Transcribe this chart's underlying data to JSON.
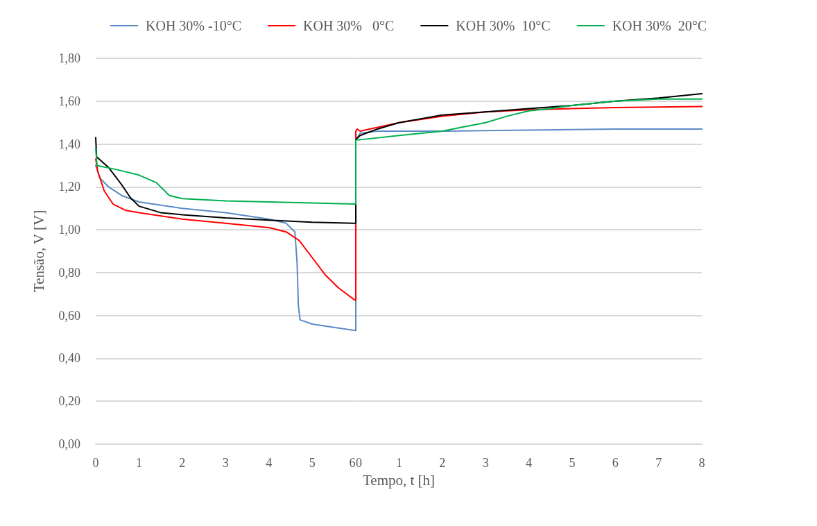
{
  "chart_data": [
    {
      "type": "line",
      "xlabel": "Tempo, t [h]",
      "ylabel": "Tensão, V [V]",
      "xlim": [
        0,
        6
      ],
      "xticks": [
        0,
        1,
        2,
        3,
        4,
        5,
        6
      ],
      "ylim": [
        0,
        1.8
      ],
      "yticks": [
        {
          "value": 0,
          "label": "0,00"
        },
        {
          "value": 0.2,
          "label": "0,20"
        },
        {
          "value": 0.4,
          "label": "0,40"
        },
        {
          "value": 0.6,
          "label": "0,60"
        },
        {
          "value": 0.8,
          "label": "0,80"
        },
        {
          "value": 1,
          "label": "1,00"
        },
        {
          "value": 1.2,
          "label": "1,20"
        },
        {
          "value": 1.4,
          "label": "1,40"
        },
        {
          "value": 1.6,
          "label": "1,60"
        },
        {
          "value": 1.8,
          "label": "1,80"
        }
      ],
      "grid": "y",
      "legend": "top",
      "marker": "none",
      "line_style": "solid",
      "series": [
        {
          "name": "KOH 30% -10°C",
          "color": "#5b8ac6",
          "x": [
            0,
            0.1,
            0.3,
            0.6,
            1,
            2,
            3,
            4,
            4.4,
            4.6,
            4.65,
            4.68,
            4.72,
            5,
            5.5,
            6
          ],
          "values": [
            1.3,
            1.24,
            1.2,
            1.16,
            1.13,
            1.1,
            1.08,
            1.05,
            1.03,
            0.99,
            0.85,
            0.65,
            0.58,
            0.56,
            0.545,
            0.53
          ]
        },
        {
          "name": "KOH 30%   0°C",
          "color": "#ff0000",
          "x": [
            0,
            0.05,
            0.2,
            0.4,
            0.7,
            1,
            2,
            3,
            4,
            4.4,
            4.7,
            5,
            5.3,
            5.6,
            6
          ],
          "values": [
            1.33,
            1.27,
            1.18,
            1.12,
            1.09,
            1.08,
            1.05,
            1.03,
            1.01,
            0.99,
            0.95,
            0.87,
            0.79,
            0.73,
            0.67
          ]
        },
        {
          "name": "KOH 30%  10°C",
          "color": "#000000",
          "x": [
            0,
            0.02,
            0.3,
            0.6,
            0.8,
            1,
            1.5,
            2,
            3,
            4,
            5,
            6
          ],
          "values": [
            1.43,
            1.34,
            1.29,
            1.21,
            1.15,
            1.11,
            1.08,
            1.07,
            1.055,
            1.045,
            1.035,
            1.03
          ]
        },
        {
          "name": "KOH 30%  20°C",
          "color": "#00b050",
          "x": [
            0,
            0.03,
            0.5,
            1,
            1.4,
            1.7,
            2,
            3,
            4,
            5,
            6
          ],
          "values": [
            1.38,
            1.3,
            1.28,
            1.255,
            1.22,
            1.16,
            1.145,
            1.135,
            1.13,
            1.125,
            1.12
          ]
        }
      ]
    },
    {
      "type": "line",
      "xlim": [
        0,
        8
      ],
      "xticks": [
        0,
        1,
        2,
        3,
        4,
        5,
        6,
        7,
        8
      ],
      "ylim": [
        0,
        1.8
      ],
      "yticks": [
        0,
        0.2,
        0.4,
        0.6,
        0.8,
        1,
        1.2,
        1.4,
        1.6,
        1.8
      ],
      "tick_labels": "x",
      "grid": "y",
      "marker": "none",
      "line_style": "solid",
      "series": [
        {
          "color": "#5b8ac6",
          "x": [
            0,
            0,
            0.1,
            0.5,
            2,
            4,
            6,
            8
          ],
          "values": [
            0.53,
            1.42,
            1.45,
            1.46,
            1.46,
            1.465,
            1.47,
            1.47
          ]
        },
        {
          "color": "#ff0000",
          "x": [
            0,
            0,
            0.03,
            0.1,
            1,
            2,
            3,
            4,
            5,
            6,
            8
          ],
          "values": [
            0.67,
            1.46,
            1.47,
            1.46,
            1.5,
            1.53,
            1.55,
            1.56,
            1.565,
            1.57,
            1.575
          ]
        },
        {
          "color": "#000000",
          "x": [
            0,
            0,
            0.1,
            0.5,
            1,
            2,
            3,
            4,
            5,
            6,
            7,
            8
          ],
          "values": [
            1.03,
            1.42,
            1.44,
            1.47,
            1.5,
            1.535,
            1.55,
            1.565,
            1.58,
            1.6,
            1.615,
            1.635
          ]
        },
        {
          "color": "#00b050",
          "x": [
            0,
            0,
            0.1,
            1,
            2,
            2.5,
            3,
            3.5,
            4,
            4.5,
            5,
            6,
            7,
            8
          ],
          "values": [
            1.12,
            1.42,
            1.42,
            1.44,
            1.46,
            1.48,
            1.5,
            1.53,
            1.555,
            1.565,
            1.58,
            1.6,
            1.61,
            1.61
          ]
        }
      ]
    }
  ]
}
